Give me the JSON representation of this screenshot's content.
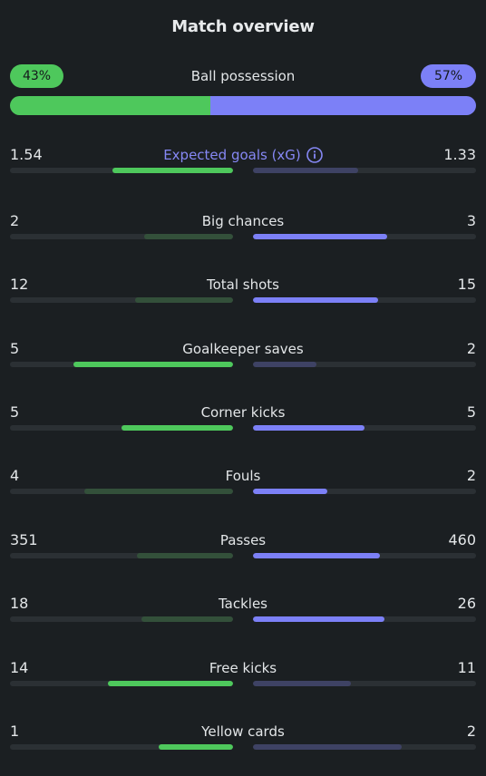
{
  "title": "Match overview",
  "colors": {
    "home": "#4ec85c",
    "home_dim": "#33503a",
    "away": "#7c80f7",
    "away_dim": "#3e4264",
    "track": "#2b3034"
  },
  "possession": {
    "label": "Ball possession",
    "home_label": "43%",
    "away_label": "57%",
    "home": 43,
    "away": 57
  },
  "info_icon": "info-icon",
  "stats": [
    {
      "label": "Expected goals (xG)",
      "home": "1.54",
      "away": "1.33",
      "home_fill": 0.54,
      "away_fill": 0.47,
      "winner": "home",
      "accent": true,
      "info": true
    },
    {
      "label": "Big chances",
      "home": "2",
      "away": "3",
      "home_fill": 0.4,
      "away_fill": 0.6,
      "winner": "away"
    },
    {
      "label": "Total shots",
      "home": "12",
      "away": "15",
      "home_fill": 0.44,
      "away_fill": 0.56,
      "winner": "away"
    },
    {
      "label": "Goalkeeper saves",
      "home": "5",
      "away": "2",
      "home_fill": 0.715,
      "away_fill": 0.285,
      "winner": "home"
    },
    {
      "label": "Corner kicks",
      "home": "5",
      "away": "5",
      "home_fill": 0.5,
      "away_fill": 0.5,
      "winner": "both"
    },
    {
      "label": "Fouls",
      "home": "4",
      "away": "2",
      "home_fill": 0.665,
      "away_fill": 0.335,
      "winner": "away"
    },
    {
      "label": "Passes",
      "home": "351",
      "away": "460",
      "home_fill": 0.43,
      "away_fill": 0.57,
      "winner": "away"
    },
    {
      "label": "Tackles",
      "home": "18",
      "away": "26",
      "home_fill": 0.41,
      "away_fill": 0.59,
      "winner": "away"
    },
    {
      "label": "Free kicks",
      "home": "14",
      "away": "11",
      "home_fill": 0.56,
      "away_fill": 0.44,
      "winner": "home"
    },
    {
      "label": "Yellow cards",
      "home": "1",
      "away": "2",
      "home_fill": 0.335,
      "away_fill": 0.665,
      "winner": "home"
    }
  ]
}
